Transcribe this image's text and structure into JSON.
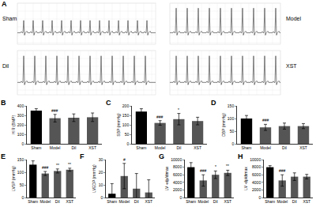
{
  "panel_a": {
    "label": "A",
    "recordings": [
      "Sham",
      "Model",
      "Dil",
      "XST"
    ]
  },
  "chart_data": [
    {
      "panel": "B",
      "type": "bar",
      "y_label": "H R (BMP)",
      "categories": [
        "Sham",
        "Model",
        "Dil",
        "XST"
      ],
      "values": [
        350,
        270,
        275,
        280
      ],
      "errors": [
        20,
        40,
        40,
        45
      ],
      "marks": [
        null,
        "###",
        null,
        null
      ],
      "colors": [
        "#000000",
        "#555555",
        "#555555",
        "#555555"
      ],
      "ylim": [
        0,
        400
      ],
      "yticks": [
        0,
        100,
        200,
        300,
        400
      ]
    },
    {
      "panel": "C",
      "type": "bar",
      "y_label": "SBP (mmHg)",
      "categories": [
        "Sham",
        "Model",
        "Dil",
        "XST"
      ],
      "values": [
        170,
        110,
        130,
        120
      ],
      "errors": [
        15,
        12,
        30,
        20
      ],
      "marks": [
        null,
        "###",
        "*",
        null
      ],
      "colors": [
        "#000000",
        "#555555",
        "#555555",
        "#555555"
      ],
      "ylim": [
        0,
        200
      ],
      "yticks": [
        0,
        50,
        100,
        150,
        200
      ]
    },
    {
      "panel": "D",
      "type": "bar",
      "y_label": "DBP (mmHg)",
      "categories": [
        "Sham",
        "Model",
        "Dil",
        "XST"
      ],
      "values": [
        100,
        65,
        70,
        70
      ],
      "errors": [
        12,
        12,
        12,
        10
      ],
      "marks": [
        null,
        "###",
        null,
        null
      ],
      "colors": [
        "#000000",
        "#555555",
        "#555555",
        "#555555"
      ],
      "ylim": [
        0,
        150
      ],
      "yticks": [
        0,
        50,
        100,
        150
      ]
    },
    {
      "panel": "E",
      "type": "bar",
      "y_label": "LVSP (mmHg)",
      "categories": [
        "Sham",
        "Model",
        "Dil",
        "XST"
      ],
      "values": [
        130,
        95,
        105,
        110
      ],
      "errors": [
        15,
        8,
        8,
        6
      ],
      "marks": [
        null,
        "###",
        "**",
        "**"
      ],
      "colors": [
        "#000000",
        "#555555",
        "#555555",
        "#555555"
      ],
      "ylim": [
        0,
        150
      ],
      "yticks": [
        0,
        50,
        100,
        150
      ]
    },
    {
      "panel": "F",
      "type": "bar",
      "y_label": "LVEDP (mmHg)",
      "categories": [
        "Sham",
        "Model",
        "Dil",
        "XST"
      ],
      "values": [
        3,
        17,
        7,
        4
      ],
      "errors": [
        8,
        10,
        12,
        10
      ],
      "marks": [
        null,
        "#",
        null,
        null
      ],
      "colors": [
        "#000000",
        "#555555",
        "#555555",
        "#555555"
      ],
      "ylim": [
        0,
        30
      ],
      "yticks": [
        0,
        10,
        20,
        30
      ]
    },
    {
      "panel": "G",
      "type": "bar",
      "y_label": "LV +dp/dtmax",
      "categories": [
        "Sham",
        "Model",
        "Dil",
        "XST"
      ],
      "values": [
        8000,
        4500,
        6000,
        6500
      ],
      "errors": [
        1200,
        1500,
        1000,
        700
      ],
      "marks": [
        null,
        "###",
        "*",
        "**"
      ],
      "colors": [
        "#000000",
        "#555555",
        "#555555",
        "#555555"
      ],
      "ylim": [
        0,
        10000
      ],
      "yticks": [
        0,
        2000,
        4000,
        6000,
        8000,
        10000
      ]
    },
    {
      "panel": "H",
      "type": "bar",
      "y_label": "LV -dp/dtmax",
      "categories": [
        "Sham",
        "Model",
        "Dil",
        "XST"
      ],
      "values": [
        8000,
        4500,
        5500,
        5500
      ],
      "errors": [
        400,
        1500,
        1000,
        600
      ],
      "marks": [
        null,
        "###",
        null,
        null
      ],
      "colors": [
        "#000000",
        "#555555",
        "#555555",
        "#555555"
      ],
      "ylim": [
        0,
        10000
      ],
      "yticks": [
        0,
        2000,
        4000,
        6000,
        8000,
        10000
      ]
    }
  ]
}
